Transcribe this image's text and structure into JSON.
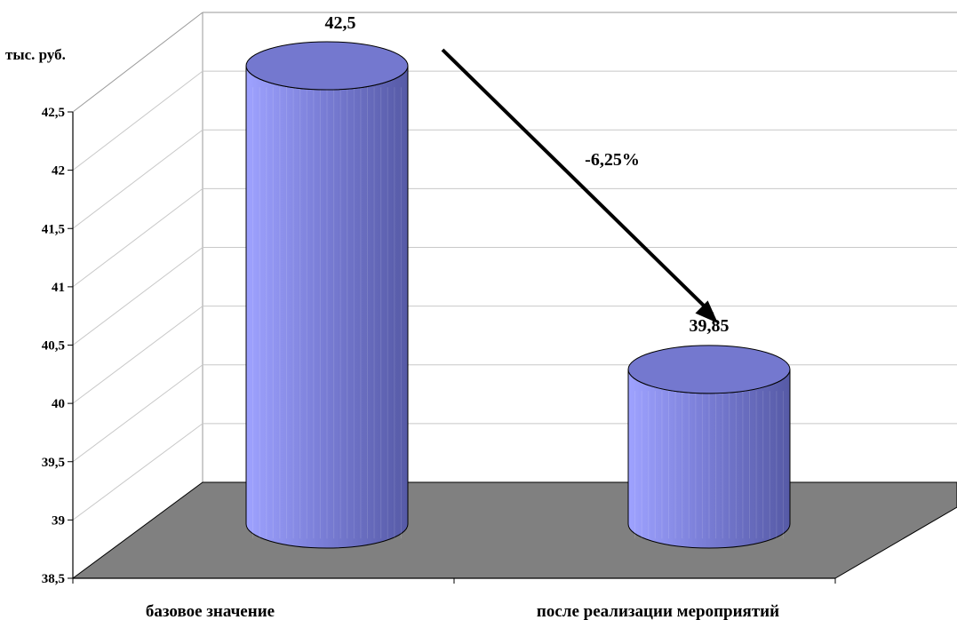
{
  "chart_data": {
    "type": "bar",
    "style": "3d-cylinder",
    "categories": [
      "базовое значение",
      "после реализации мероприятий"
    ],
    "values": [
      42.5,
      39.85
    ],
    "data_labels": [
      "42,5",
      "39,85"
    ],
    "ylabel": "тыс. руб.",
    "ylim": [
      38.5,
      42.5
    ],
    "yticks": [
      38.5,
      39,
      39.5,
      40,
      40.5,
      41,
      41.5,
      42,
      42.5
    ],
    "ytick_labels": [
      "38,5",
      "39",
      "39,5",
      "40",
      "40,5",
      "41",
      "41,5",
      "42",
      "42,5"
    ],
    "grid": true,
    "legend": "none",
    "annotation": {
      "text": "-6,25%",
      "arrow": "from first bar top to second bar top"
    },
    "colors": {
      "bar_fill": "#7b7fd8",
      "bar_light": "#9ea2ff",
      "bar_dark": "#565aa6",
      "bar_top": "#7478cf",
      "floor": "#808080",
      "grid": "#c8c8c8",
      "axis": "#000000"
    }
  }
}
